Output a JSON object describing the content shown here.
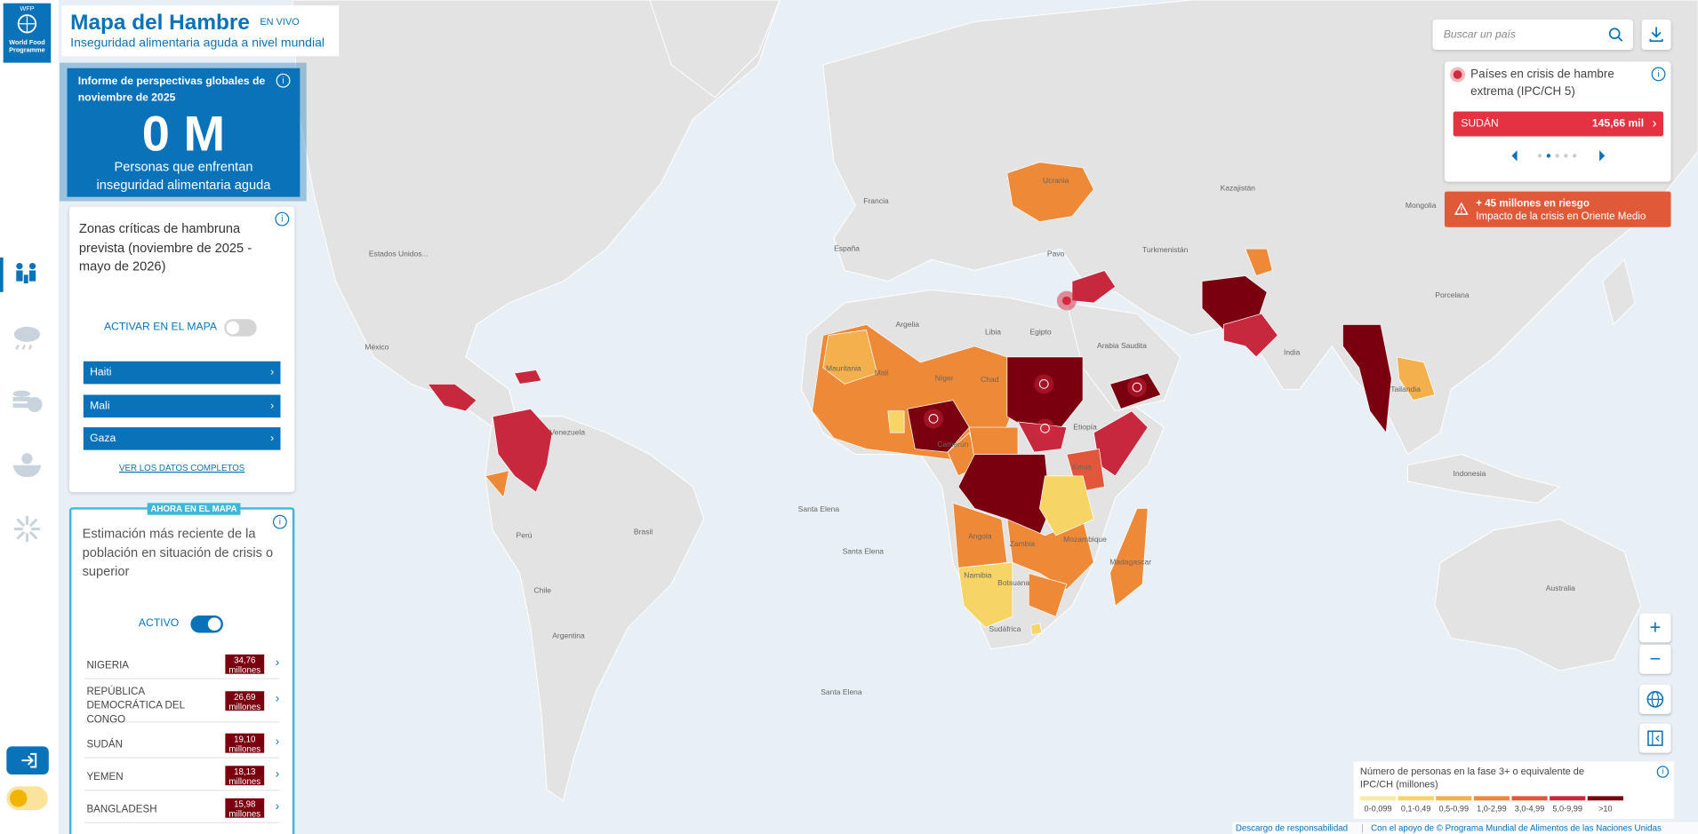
{
  "header": {
    "logo": [
      "WFP",
      "World Food",
      "Programme"
    ],
    "title": "Mapa del Hambre",
    "badge": "EN VIVO",
    "subtitle": "Inseguridad alimentaria aguda a nivel mundial"
  },
  "summary": {
    "title": "Informe de perspectivas globales de noviembre de 2025",
    "value": "0 M",
    "caption": "Personas que enfrentan inseguridad alimentaria aguda"
  },
  "hotspots": {
    "title": "Zonas críticas de hambruna prevista (noviembre de 2025 - mayo de 2026)",
    "toggle_label": "ACTIVAR EN EL MAPA",
    "items": [
      "Haiti",
      "Mali",
      "Gaza"
    ],
    "link": "VER LOS DATOS COMPLETOS"
  },
  "current": {
    "badge": "AHORA EN EL MAPA",
    "title": "Estimación más reciente de la población en situación de crisis o superior",
    "toggle_label": "ACTIVO",
    "rows": [
      {
        "country": "NIGERIA",
        "value": "34,76 millones"
      },
      {
        "country": "REPÚBLICA DEMOCRÁTICA DEL CONGO",
        "value": "26,69 millones"
      },
      {
        "country": "SUDÁN",
        "value": "19,10 millones"
      },
      {
        "country": "YEMEN",
        "value": "18,13 millones"
      },
      {
        "country": "BANGLADESH",
        "value": "15,98 millones"
      }
    ]
  },
  "search": {
    "placeholder": "Buscar un país"
  },
  "famine": {
    "title": "Países en crisis de hambre extrema (IPC/CH 5)",
    "country": "SUDÁN",
    "value": "145,66 mil"
  },
  "alert": {
    "title": "+ 45 millones en riesgo",
    "subtitle": "Impacto de la crisis en Oriente Medio"
  },
  "legend": {
    "title": "Número de personas en la fase 3+ o equivalente de IPC/CH (millones)",
    "items": [
      {
        "label": "0-0,099",
        "color": "#fbeaa6"
      },
      {
        "label": "0,1-0,49",
        "color": "#f6d466"
      },
      {
        "label": "0,5-0,99",
        "color": "#f3b04c"
      },
      {
        "label": "1,0-2,99",
        "color": "#ee8a37"
      },
      {
        "label": "3,0-4,99",
        "color": "#e2563b"
      },
      {
        "label": "5,0-9,99",
        "color": "#c8283e"
      },
      {
        "label": ">10",
        "color": "#7a0010"
      }
    ]
  },
  "map_labels": [
    "Estados Unidos...",
    "México",
    "Venezuela",
    "Perú",
    "Brasil",
    "Chile",
    "Argentina",
    "Santa Elena",
    "Santa Elena",
    "Santa Elena",
    "España",
    "Francia",
    "Ucrania",
    "Argelia",
    "Libia",
    "Egipto",
    "Mauritania",
    "Mali",
    "Níger",
    "Chad",
    "Etiopía",
    "Kenia",
    "Camerún",
    "Angola",
    "Zambia",
    "Namibia",
    "Botsuana",
    "Sudáfrica",
    "Mozambique",
    "Madagascar",
    "Pavo",
    "Arabia Saudita",
    "Turkmenistán",
    "Kazajistán",
    "Mongolia",
    "Porcelana",
    "India",
    "Tailandia",
    "Indonesia",
    "Australia"
  ],
  "footer": {
    "disclaimer": "Descargo de responsabilidad",
    "credit": "Con el apoyo de © Programa Mundial de Alimentos de las Naciones Unidas"
  }
}
